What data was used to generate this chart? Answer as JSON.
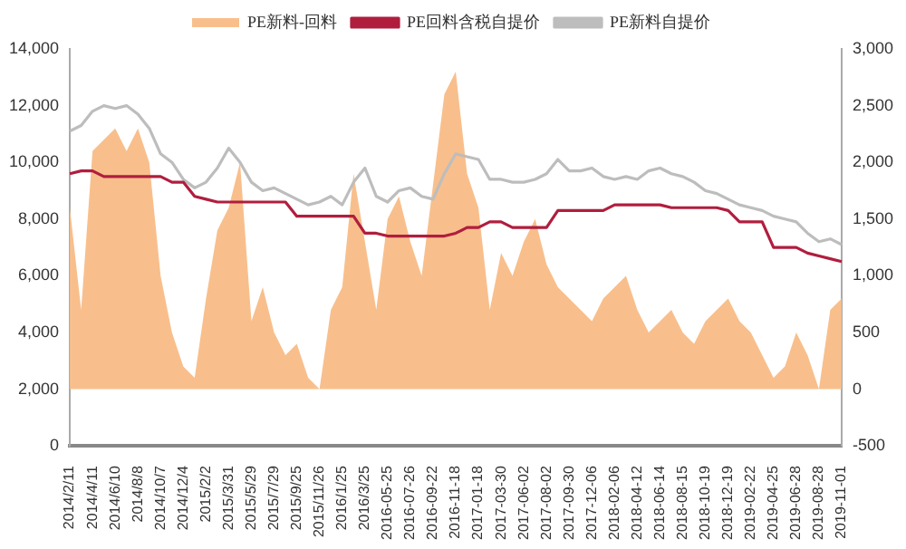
{
  "chart_data": {
    "type": "line",
    "legend": "top",
    "grid": false,
    "marker": "none",
    "line_style": "solid",
    "categories": [
      "2014/2/11",
      null,
      "2014/4/11",
      null,
      "2014/6/10",
      null,
      "2014/8/8",
      null,
      "2014/10/7",
      null,
      "2014/12/4",
      null,
      "2015/2/2",
      null,
      "2015/3/31",
      null,
      "2015/5/29",
      null,
      "2015/7/29",
      null,
      "2015/9/25",
      null,
      "2015/11/26",
      null,
      "2016/1/25",
      null,
      "2016/3/25",
      null,
      "2016-05-25",
      null,
      "2016-07-26",
      null,
      "2016-09-22",
      null,
      "2016-11-18",
      null,
      "2017-01-18",
      null,
      "2017-03-30",
      null,
      "2017-06-02",
      null,
      "2017-08-02",
      null,
      "2017-09-30",
      null,
      "2017-12-06",
      null,
      "2018-02-06",
      null,
      "2018-04-12",
      null,
      "2018-06-14",
      null,
      "2018-08-15",
      null,
      "2018-10-19",
      null,
      "2018-12-19",
      null,
      "2019-02-22",
      null,
      "2019-04-25",
      null,
      "2019-06-28",
      null,
      "2019-08-28",
      null,
      "2019-11-01"
    ],
    "ylim": [
      0,
      14000
    ],
    "yticks": [
      0,
      {
        "value": 2000,
        "label": "2,000"
      },
      {
        "value": 4000,
        "label": "4,000"
      },
      {
        "value": 6000,
        "label": "6,000"
      },
      {
        "value": 8000,
        "label": "8,000"
      },
      {
        "value": 10000,
        "label": "10,000"
      },
      {
        "value": 12000,
        "label": "12,000"
      },
      {
        "value": 14000,
        "label": "14,000"
      }
    ],
    "y2lim": [
      -500,
      3000
    ],
    "y2ticks": [
      -500,
      0,
      500,
      {
        "value": 1000,
        "label": "1,000"
      },
      {
        "value": 1500,
        "label": "1,500"
      },
      {
        "value": 2000,
        "label": "2,000"
      },
      {
        "value": 2500,
        "label": "2,500"
      },
      {
        "value": 3000,
        "label": "3,000"
      }
    ],
    "series": [
      {
        "name": "PE新料-回料",
        "type": "area",
        "axis": "y2",
        "color": "#f8bf8c",
        "values": [
          1600,
          700,
          2100,
          2200,
          2300,
          2100,
          2300,
          2000,
          1000,
          500,
          200,
          100,
          800,
          1400,
          1600,
          2000,
          600,
          900,
          500,
          300,
          400,
          100,
          0,
          700,
          900,
          1900,
          1300,
          700,
          1500,
          1700,
          1300,
          1000,
          1800,
          2600,
          2800,
          1900,
          1600,
          700,
          1200,
          1000,
          1300,
          1500,
          1100,
          900,
          800,
          700,
          600,
          800,
          900,
          1000,
          700,
          500,
          600,
          700,
          500,
          400,
          600,
          700,
          800,
          600,
          500,
          300,
          100,
          200,
          500,
          300,
          0,
          700,
          800
        ]
      },
      {
        "name": "PE回料含税自提价",
        "color": "#b01e3e",
        "values": [
          9600,
          9700,
          9700,
          9500,
          9500,
          9500,
          9500,
          9500,
          9500,
          9300,
          9300,
          8800,
          8700,
          8600,
          8600,
          8600,
          8600,
          8600,
          8600,
          8600,
          8100,
          8100,
          8100,
          8100,
          8100,
          8100,
          7500,
          7500,
          7400,
          7400,
          7400,
          7400,
          7400,
          7400,
          7500,
          7700,
          7700,
          7900,
          7900,
          7700,
          7700,
          7700,
          7700,
          8300,
          8300,
          8300,
          8300,
          8300,
          8500,
          8500,
          8500,
          8500,
          8500,
          8400,
          8400,
          8400,
          8400,
          8400,
          8300,
          7900,
          7900,
          7900,
          7000,
          7000,
          7000,
          6800,
          6700,
          6600,
          6500
        ]
      },
      {
        "name": "PE新料自提价",
        "color": "#bdbdbd",
        "values": [
          11100,
          11300,
          11800,
          12000,
          11900,
          12000,
          11700,
          11200,
          10300,
          10000,
          9400,
          9100,
          9300,
          9800,
          10500,
          10000,
          9300,
          9000,
          9100,
          8900,
          8700,
          8500,
          8600,
          8800,
          8500,
          9300,
          9800,
          8800,
          8600,
          9000,
          9100,
          8800,
          8700,
          9600,
          10300,
          10200,
          10100,
          9400,
          9400,
          9300,
          9300,
          9400,
          9600,
          10100,
          9700,
          9700,
          9800,
          9500,
          9400,
          9500,
          9400,
          9700,
          9800,
          9600,
          9500,
          9300,
          9000,
          8900,
          8700,
          8500,
          8400,
          8300,
          8100,
          8000,
          7900,
          7500,
          7200,
          7300,
          7100
        ]
      }
    ]
  }
}
